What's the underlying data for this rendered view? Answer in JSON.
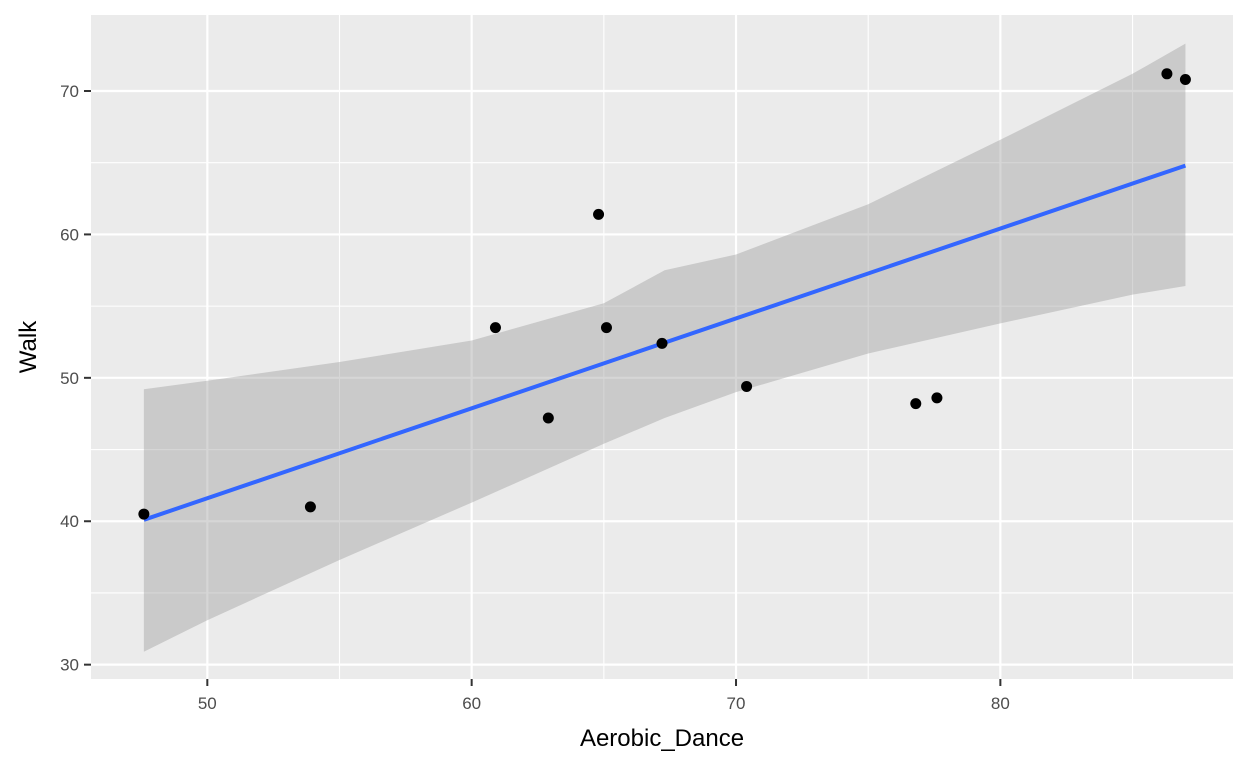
{
  "chart_data": {
    "type": "scatter",
    "title": "",
    "xlabel": "Aerobic_Dance",
    "ylabel": "Walk",
    "xlim": [
      45.6,
      88.8
    ],
    "ylim": [
      29.0,
      75.3
    ],
    "x_ticks": [
      50,
      60,
      70,
      80
    ],
    "y_ticks": [
      30,
      40,
      50,
      60,
      70
    ],
    "x_minor": [
      55,
      65,
      75,
      85
    ],
    "y_minor": [
      35,
      45,
      55,
      65
    ],
    "grid": true,
    "legend": "none",
    "points": [
      {
        "x": 47.6,
        "y": 40.5
      },
      {
        "x": 53.9,
        "y": 41.0
      },
      {
        "x": 60.9,
        "y": 53.5
      },
      {
        "x": 62.9,
        "y": 47.2
      },
      {
        "x": 64.8,
        "y": 61.4
      },
      {
        "x": 65.1,
        "y": 53.5
      },
      {
        "x": 67.2,
        "y": 52.4
      },
      {
        "x": 70.4,
        "y": 49.4
      },
      {
        "x": 76.8,
        "y": 48.2
      },
      {
        "x": 77.6,
        "y": 48.6
      },
      {
        "x": 86.3,
        "y": 71.2
      },
      {
        "x": 87.0,
        "y": 70.8
      }
    ],
    "smooth": {
      "method": "lm",
      "line": [
        {
          "x": 47.6,
          "y": 40.1
        },
        {
          "x": 87.0,
          "y": 64.8
        }
      ],
      "band": [
        {
          "x": 47.6,
          "lo": 30.9,
          "hi": 49.2
        },
        {
          "x": 50.0,
          "lo": 33.1,
          "hi": 49.8
        },
        {
          "x": 55.0,
          "lo": 37.3,
          "hi": 51.1
        },
        {
          "x": 60.0,
          "lo": 41.3,
          "hi": 52.6
        },
        {
          "x": 65.0,
          "lo": 45.4,
          "hi": 55.2
        },
        {
          "x": 67.3,
          "lo": 47.2,
          "hi": 57.5
        },
        {
          "x": 70.0,
          "lo": 49.0,
          "hi": 58.6
        },
        {
          "x": 75.0,
          "lo": 51.7,
          "hi": 62.1
        },
        {
          "x": 80.0,
          "lo": 53.8,
          "hi": 66.6
        },
        {
          "x": 85.0,
          "lo": 55.8,
          "hi": 71.2
        },
        {
          "x": 87.0,
          "lo": 56.4,
          "hi": 73.3
        }
      ]
    },
    "colors": {
      "panel": "#ebebeb",
      "grid": "#ffffff",
      "point": "#000000",
      "line": "#3366ff",
      "band": "#999999"
    }
  }
}
